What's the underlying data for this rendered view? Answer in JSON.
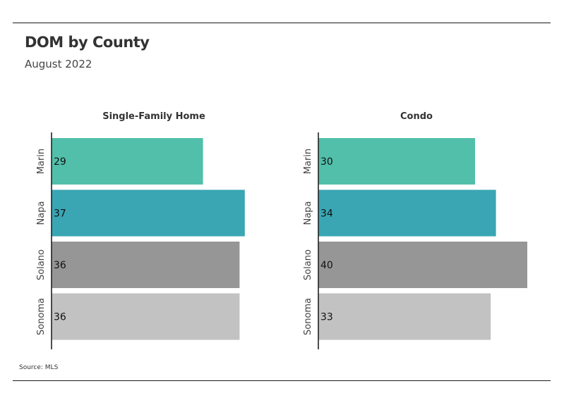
{
  "title": "DOM by County",
  "subtitle": "August 2022",
  "source": "Source: MLS",
  "chart_data": [
    {
      "type": "bar",
      "orientation": "horizontal",
      "title": "Single-Family Home",
      "categories": [
        "Marin",
        "Napa",
        "Solano",
        "Sonoma"
      ],
      "values": [
        29,
        37,
        36,
        36
      ],
      "colors": [
        "#52bfaa",
        "#3aa6b4",
        "#969696",
        "#c2c2c2"
      ],
      "xlim": [
        0,
        40
      ],
      "grid": false
    },
    {
      "type": "bar",
      "orientation": "horizontal",
      "title": "Condo",
      "categories": [
        "Marin",
        "Napa",
        "Solano",
        "Sonoma"
      ],
      "values": [
        30,
        34,
        40,
        33
      ],
      "colors": [
        "#52bfaa",
        "#3aa6b4",
        "#969696",
        "#c2c2c2"
      ],
      "xlim": [
        0,
        40
      ],
      "grid": false
    }
  ]
}
